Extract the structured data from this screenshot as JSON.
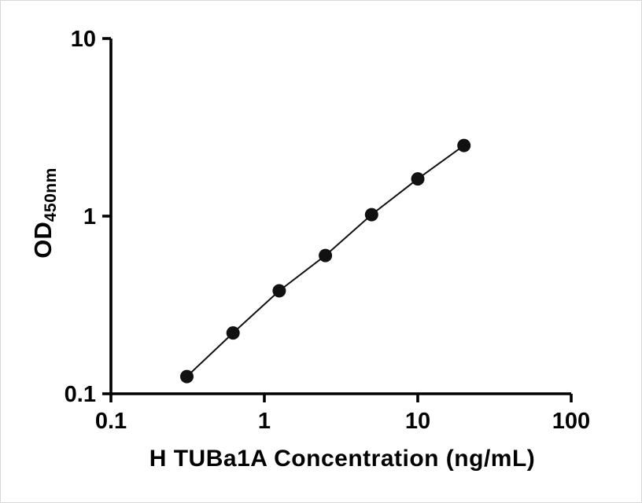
{
  "chart_data": {
    "type": "scatter",
    "title": "",
    "xlabel": "H TUBa1A Concentration (ng/mL)",
    "ylabel_main": "OD",
    "ylabel_sub": "450nm",
    "xscale": "log",
    "yscale": "log",
    "xlim": [
      0.1,
      100
    ],
    "ylim": [
      0.1,
      10
    ],
    "x_ticks": [
      "0.1",
      "1",
      "10",
      "100"
    ],
    "y_ticks": [
      "10",
      "1",
      "0.1"
    ],
    "x": [
      0.3125,
      0.625,
      1.25,
      2.5,
      5,
      10,
      20
    ],
    "y": [
      0.125,
      0.22,
      0.38,
      0.6,
      1.02,
      1.62,
      2.5
    ],
    "grid": "off",
    "legend": "none",
    "marker": "filled-circle",
    "marker_color": "#111111",
    "line_color": "#111111",
    "axis_color": "#000000"
  }
}
